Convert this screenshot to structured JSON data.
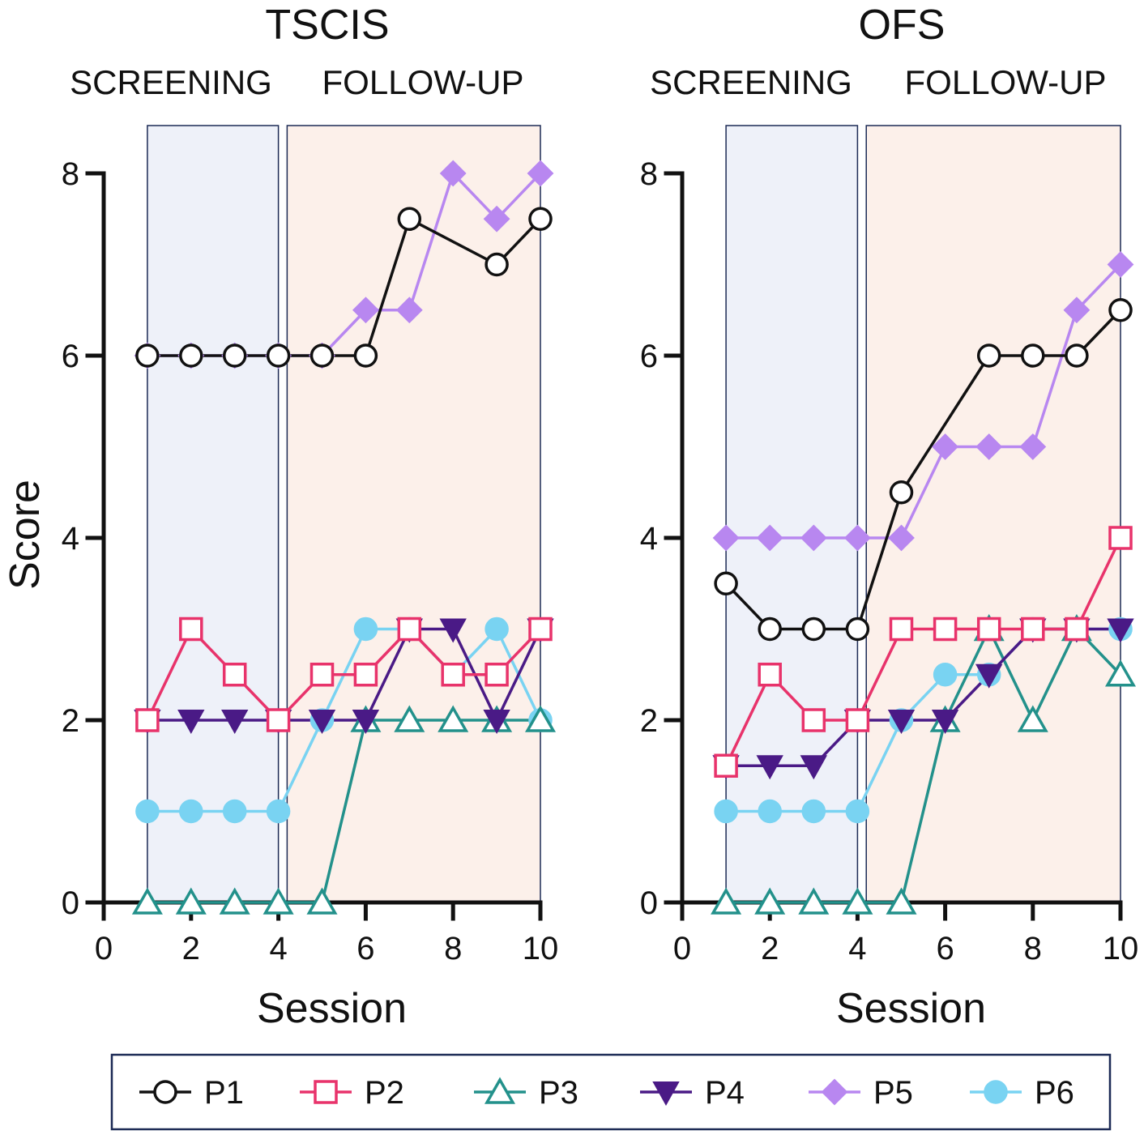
{
  "chart_data": [
    {
      "type": "line",
      "title": "TSCIS",
      "phases": [
        {
          "label": "SCREENING",
          "start": 1,
          "end": 4,
          "color": "#eef1f9"
        },
        {
          "label": "FOLLOW-UP",
          "start": 4.2,
          "end": 10,
          "color": "#fcf0ea"
        }
      ],
      "xlabel": "Session",
      "ylabel": "Score",
      "xlim": [
        0,
        10
      ],
      "ylim": [
        0,
        8
      ],
      "xticks": [
        0,
        2,
        4,
        6,
        8,
        10
      ],
      "yticks": [
        0,
        2,
        4,
        6,
        8
      ],
      "x": [
        1,
        2,
        3,
        4,
        5,
        6,
        7,
        8,
        9,
        10
      ],
      "series": [
        {
          "name": "P1",
          "values": [
            6,
            6,
            6,
            6,
            6,
            6,
            7.5,
            null,
            7,
            7.5
          ]
        },
        {
          "name": "P2",
          "values": [
            2,
            3,
            2.5,
            2,
            2.5,
            2.5,
            3,
            2.5,
            2.5,
            3
          ]
        },
        {
          "name": "P3",
          "values": [
            0,
            0,
            0,
            0,
            0,
            2,
            2,
            2,
            2,
            2
          ]
        },
        {
          "name": "P4",
          "values": [
            2,
            2,
            2,
            2,
            2,
            2,
            3,
            3,
            2,
            3
          ]
        },
        {
          "name": "P5",
          "values": [
            6,
            6,
            6,
            6,
            6,
            6.5,
            6.5,
            8,
            7.5,
            8
          ]
        },
        {
          "name": "P6",
          "values": [
            1,
            1,
            1,
            1,
            2,
            3,
            3,
            2.5,
            3,
            2
          ]
        }
      ]
    },
    {
      "type": "line",
      "title": "OFS",
      "phases": [
        {
          "label": "SCREENING",
          "start": 1,
          "end": 4,
          "color": "#eef1f9"
        },
        {
          "label": "FOLLOW-UP",
          "start": 4.2,
          "end": 10,
          "color": "#fcf0ea"
        }
      ],
      "xlabel": "Session",
      "ylabel": "",
      "xlim": [
        0,
        10
      ],
      "ylim": [
        0,
        8
      ],
      "xticks": [
        0,
        2,
        4,
        6,
        8,
        10
      ],
      "yticks": [
        0,
        2,
        4,
        6,
        8
      ],
      "x": [
        1,
        2,
        3,
        4,
        5,
        6,
        7,
        8,
        9,
        10
      ],
      "series": [
        {
          "name": "P1",
          "values": [
            3.5,
            3,
            3,
            3,
            4.5,
            null,
            6,
            6,
            6,
            6.5
          ]
        },
        {
          "name": "P2",
          "values": [
            1.5,
            2.5,
            2,
            2,
            3,
            3,
            3,
            3,
            3,
            4
          ]
        },
        {
          "name": "P3",
          "values": [
            0,
            0,
            0,
            0,
            0,
            2,
            3,
            2,
            3,
            2.5
          ]
        },
        {
          "name": "P4",
          "values": [
            1.5,
            1.5,
            1.5,
            2,
            2,
            2,
            2.5,
            3,
            3,
            3
          ]
        },
        {
          "name": "P5",
          "values": [
            4,
            4,
            4,
            4,
            4,
            5,
            5,
            5,
            6.5,
            7
          ]
        },
        {
          "name": "P6",
          "values": [
            1,
            1,
            1,
            1,
            2,
            2.5,
            2.5,
            3,
            3,
            3
          ]
        }
      ]
    }
  ],
  "legend": {
    "placement": "bottom",
    "items": [
      {
        "name": "P1",
        "marker": "open-circle",
        "color": "#111111"
      },
      {
        "name": "P2",
        "marker": "open-square",
        "color": "#e8336b"
      },
      {
        "name": "P3",
        "marker": "open-triangle-up",
        "color": "#23918b"
      },
      {
        "name": "P4",
        "marker": "filled-triangle-down",
        "color": "#4a1a86"
      },
      {
        "name": "P5",
        "marker": "filled-diamond",
        "color": "#b887f0"
      },
      {
        "name": "P6",
        "marker": "filled-circle",
        "color": "#79d3f2"
      }
    ]
  }
}
